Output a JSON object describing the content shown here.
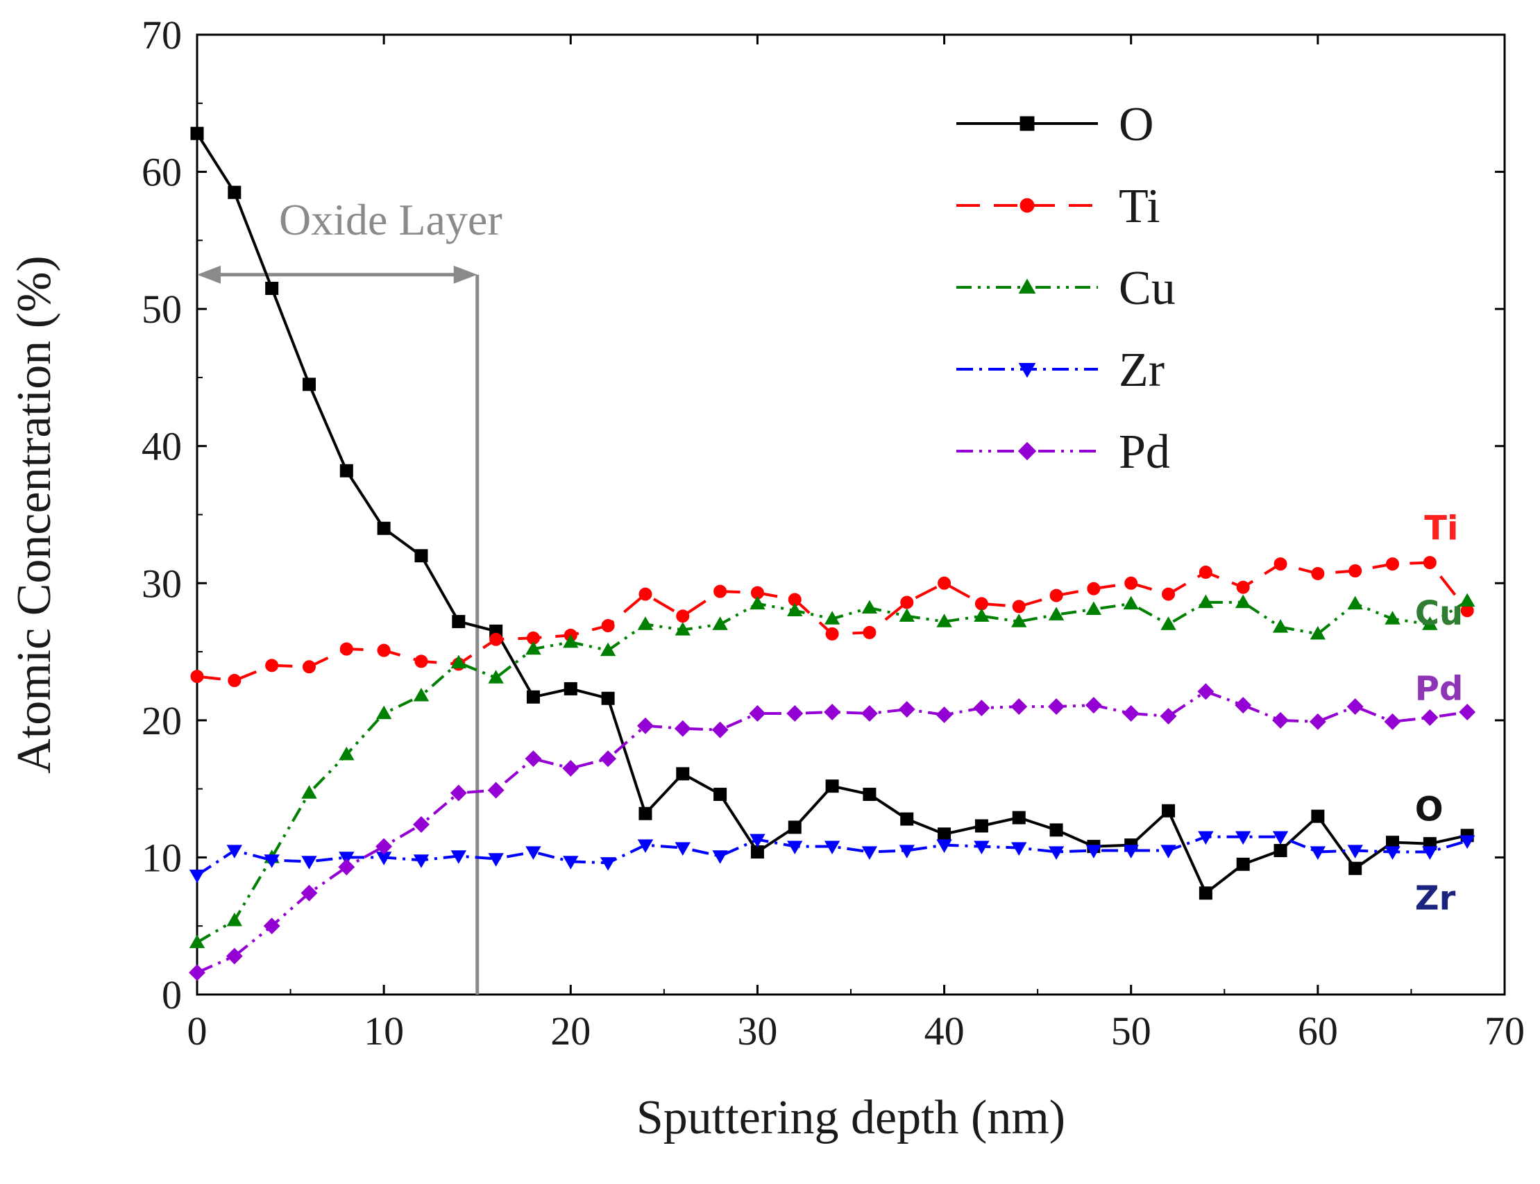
{
  "chart_data": {
    "type": "line",
    "xlabel": "Sputtering depth (nm)",
    "ylabel": "Atomic Concentration (%)",
    "xlim": [
      0,
      70
    ],
    "ylim": [
      0,
      70
    ],
    "xticks": [
      0,
      10,
      20,
      30,
      40,
      50,
      60,
      70
    ],
    "yticks": [
      0,
      10,
      20,
      30,
      40,
      50,
      60,
      70
    ],
    "grid": false,
    "legend": {
      "position": "top-right"
    },
    "x": [
      0,
      2,
      4,
      6,
      8,
      10,
      12,
      14,
      16,
      18,
      20,
      22,
      24,
      26,
      28,
      30,
      32,
      34,
      36,
      38,
      40,
      42,
      44,
      46,
      48,
      50,
      52,
      54,
      56,
      58,
      60,
      62,
      64,
      66,
      68
    ],
    "series": [
      {
        "name": "O",
        "color": "#000000",
        "dash": "",
        "marker": "square",
        "values": [
          62.8,
          58.5,
          51.5,
          44.5,
          38.2,
          34.0,
          32.0,
          27.2,
          26.5,
          21.7,
          22.3,
          21.6,
          13.2,
          16.1,
          14.6,
          10.4,
          12.2,
          15.2,
          14.6,
          12.8,
          11.7,
          12.3,
          12.9,
          12.0,
          10.8,
          10.9,
          13.4,
          7.4,
          9.5,
          10.5,
          13.0,
          9.2,
          11.1,
          11.0,
          11.6
        ]
      },
      {
        "name": "Ti",
        "color": "#ff0000",
        "dash": "34 20",
        "marker": "circle",
        "values": [
          23.2,
          22.9,
          24.0,
          23.9,
          25.2,
          25.1,
          24.3,
          24.1,
          25.9,
          26.0,
          26.2,
          26.9,
          29.2,
          27.6,
          29.4,
          29.3,
          28.8,
          26.3,
          26.4,
          28.6,
          30.0,
          28.5,
          28.3,
          29.1,
          29.6,
          30.0,
          29.2,
          30.8,
          29.7,
          31.4,
          30.7,
          30.9,
          31.4,
          31.5,
          28.0
        ]
      },
      {
        "name": "Cu",
        "color": "#008000",
        "dash": "22 9 4 9 4 9",
        "marker": "triangle-up",
        "values": [
          3.8,
          5.4,
          10.0,
          14.7,
          17.5,
          20.5,
          21.8,
          24.2,
          23.1,
          25.2,
          25.7,
          25.1,
          27.0,
          26.6,
          27.0,
          28.5,
          28.0,
          27.4,
          28.2,
          27.6,
          27.2,
          27.6,
          27.2,
          27.7,
          28.1,
          28.5,
          27.0,
          28.6,
          28.6,
          26.8,
          26.3,
          28.5,
          27.4,
          27.0,
          28.7
        ]
      },
      {
        "name": "Zr",
        "color": "#0000ff",
        "dash": "24 9 4 9",
        "marker": "triangle-down",
        "values": [
          8.7,
          10.5,
          9.8,
          9.7,
          10.0,
          10.0,
          9.8,
          10.1,
          9.9,
          10.4,
          9.7,
          9.6,
          10.9,
          10.7,
          10.1,
          11.3,
          10.8,
          10.8,
          10.4,
          10.5,
          10.9,
          10.8,
          10.7,
          10.4,
          10.5,
          10.5,
          10.5,
          11.5,
          11.5,
          11.5,
          10.4,
          10.5,
          10.4,
          10.4,
          11.2
        ]
      },
      {
        "name": "Pd",
        "color": "#9400d3",
        "dash": "24 9 4 9 4 9",
        "marker": "diamond",
        "values": [
          1.6,
          2.8,
          5.0,
          7.4,
          9.3,
          10.8,
          12.4,
          14.7,
          14.9,
          17.2,
          16.5,
          17.2,
          19.6,
          19.4,
          19.3,
          20.5,
          20.5,
          20.6,
          20.5,
          20.8,
          20.4,
          20.9,
          21.0,
          21.0,
          21.1,
          20.5,
          20.3,
          22.1,
          21.1,
          20.0,
          19.9,
          21.0,
          19.9,
          20.2,
          20.6
        ]
      }
    ],
    "annotations": {
      "oxide_layer": {
        "text": "Oxide Layer",
        "x_start": 0,
        "x_end": 15,
        "y": 52.5
      },
      "end_labels": [
        {
          "text": "Ti",
          "color": "#ff2020",
          "x": 65.7,
          "y": 34.0
        },
        {
          "text": "Cu",
          "color": "#2e7d32",
          "x": 65.2,
          "y": 27.8
        },
        {
          "text": "Pd",
          "color": "#8e35b5",
          "x": 65.2,
          "y": 22.3
        },
        {
          "text": "O",
          "color": "#111111",
          "x": 65.2,
          "y": 13.5
        },
        {
          "text": "Zr",
          "color": "#1a237e",
          "x": 65.2,
          "y": 7.0
        }
      ]
    }
  }
}
